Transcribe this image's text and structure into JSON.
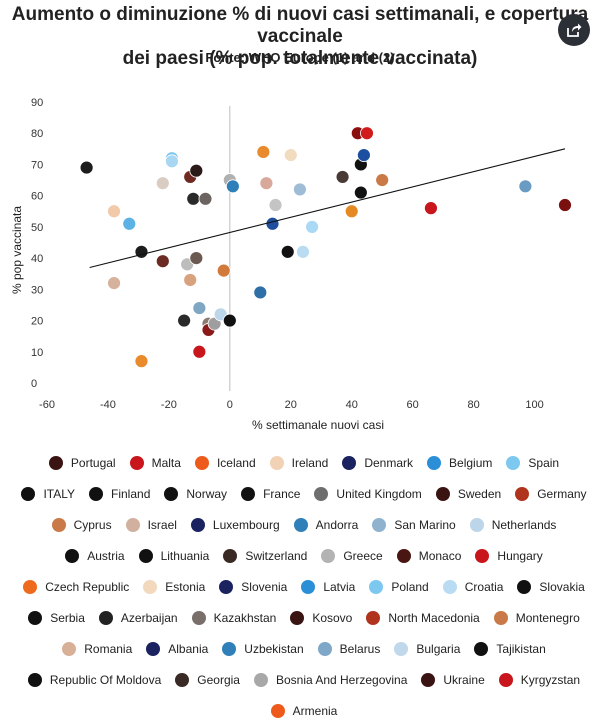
{
  "chart_data": {
    "type": "scatter",
    "title_lines": [
      "Aumento o diminuzione % di nuovi casi settimanali, e copertura vaccinale",
      "dei paesi (% pop. totalmente vaccinata)"
    ],
    "subtitle": "Fonte: WHO Europe (1) and (2)",
    "xlabel": "% settimanale nuovi casi",
    "ylabel": "% pop vaccinata",
    "xlim": [
      -60,
      110
    ],
    "ylim": [
      0,
      90
    ],
    "x_ticks": [
      -60,
      -40,
      -20,
      0,
      20,
      40,
      60,
      80,
      100
    ],
    "y_ticks": [
      0,
      10,
      20,
      30,
      40,
      50,
      60,
      70,
      80,
      90
    ],
    "vertical_reference_x": 0,
    "grid": false,
    "legend_position": "bottom",
    "trendline": {
      "x": [
        -46,
        110
      ],
      "y": [
        37,
        75
      ]
    },
    "points": [
      {
        "x": -47,
        "y": 69,
        "color": "#1c1c1c"
      },
      {
        "x": -38,
        "y": 55,
        "color": "#f2c9a9"
      },
      {
        "x": -38,
        "y": 32,
        "color": "#d6b29c"
      },
      {
        "x": -33,
        "y": 51,
        "color": "#5cb2e4"
      },
      {
        "x": -29,
        "y": 42,
        "color": "#1c1c1c"
      },
      {
        "x": -29,
        "y": 7,
        "color": "#e98a2c"
      },
      {
        "x": -22,
        "y": 39,
        "color": "#6b2a22"
      },
      {
        "x": -22,
        "y": 64,
        "color": "#d9ccc2"
      },
      {
        "x": -19,
        "y": 72,
        "color": "#7cc8ee"
      },
      {
        "x": -19,
        "y": 71,
        "color": "#a9d7f1"
      },
      {
        "x": -15,
        "y": 20,
        "color": "#2a2a2a"
      },
      {
        "x": -14,
        "y": 38,
        "color": "#bdbdbd"
      },
      {
        "x": -13,
        "y": 33,
        "color": "#d8a27f"
      },
      {
        "x": -13,
        "y": 66,
        "color": "#6e2a22"
      },
      {
        "x": -12,
        "y": 59,
        "color": "#2a2a2a"
      },
      {
        "x": -11,
        "y": 40,
        "color": "#6b5a52"
      },
      {
        "x": -11,
        "y": 68,
        "color": "#2a1a18"
      },
      {
        "x": -10,
        "y": 24,
        "color": "#7fa7c3"
      },
      {
        "x": -10,
        "y": 10,
        "color": "#c8161c"
      },
      {
        "x": -8,
        "y": 59,
        "color": "#6c6460"
      },
      {
        "x": -7,
        "y": 19,
        "color": "#8a7a72"
      },
      {
        "x": -7,
        "y": 17,
        "color": "#8a1a1a"
      },
      {
        "x": -5,
        "y": 19,
        "color": "#9e9e9e"
      },
      {
        "x": -3,
        "y": 22,
        "color": "#bcd6ea"
      },
      {
        "x": -2,
        "y": 36,
        "color": "#d27a3c"
      },
      {
        "x": 0,
        "y": 20,
        "color": "#111111"
      },
      {
        "x": 0,
        "y": 65,
        "color": "#b0b0b0"
      },
      {
        "x": 1,
        "y": 63,
        "color": "#2f7fb8"
      },
      {
        "x": 10,
        "y": 29,
        "color": "#2f6fa8"
      },
      {
        "x": 11,
        "y": 74,
        "color": "#e98a2c"
      },
      {
        "x": 12,
        "y": 64,
        "color": "#d8a89a"
      },
      {
        "x": 14,
        "y": 51,
        "color": "#1f4e9c"
      },
      {
        "x": 15,
        "y": 57,
        "color": "#c4c4c4"
      },
      {
        "x": 19,
        "y": 42,
        "color": "#111111"
      },
      {
        "x": 20,
        "y": 73,
        "color": "#f2dcc0"
      },
      {
        "x": 23,
        "y": 62,
        "color": "#9fbcd6"
      },
      {
        "x": 24,
        "y": 42,
        "color": "#b9dcf3"
      },
      {
        "x": 27,
        "y": 50,
        "color": "#a9d9f5"
      },
      {
        "x": 37,
        "y": 66,
        "color": "#4a3a36"
      },
      {
        "x": 40,
        "y": 55,
        "color": "#e58a22"
      },
      {
        "x": 42,
        "y": 80,
        "color": "#8a1010"
      },
      {
        "x": 43,
        "y": 61,
        "color": "#111111"
      },
      {
        "x": 43,
        "y": 70,
        "color": "#111111"
      },
      {
        "x": 44,
        "y": 73,
        "color": "#1c4fa0"
      },
      {
        "x": 45,
        "y": 80,
        "color": "#d21b1b"
      },
      {
        "x": 50,
        "y": 65,
        "color": "#c97a48"
      },
      {
        "x": 66,
        "y": 56,
        "color": "#c8161c"
      },
      {
        "x": 97,
        "y": 63,
        "color": "#6a9bc3"
      },
      {
        "x": 110,
        "y": 57,
        "color": "#7a1010"
      }
    ],
    "legend": [
      {
        "name": "Portugal",
        "color": "#3a1412"
      },
      {
        "name": "Malta",
        "color": "#c8161c"
      },
      {
        "name": "Iceland",
        "color": "#ee5a1c"
      },
      {
        "name": "Ireland",
        "color": "#f2d2b4"
      },
      {
        "name": "Denmark",
        "color": "#1a2360"
      },
      {
        "name": "Belgium",
        "color": "#2a8fd6"
      },
      {
        "name": "Spain",
        "color": "#7cc8ee"
      },
      {
        "name": "ITALY",
        "color": "#111111"
      },
      {
        "name": "Finland",
        "color": "#111111"
      },
      {
        "name": "Norway",
        "color": "#111111"
      },
      {
        "name": "France",
        "color": "#111111"
      },
      {
        "name": "United Kingdom",
        "color": "#6e6e6e"
      },
      {
        "name": "Sweden",
        "color": "#3a1412"
      },
      {
        "name": "Germany",
        "color": "#b0331e"
      },
      {
        "name": "Cyprus",
        "color": "#c97a48"
      },
      {
        "name": "Israel",
        "color": "#d2b0a0"
      },
      {
        "name": "Luxembourg",
        "color": "#1a2360"
      },
      {
        "name": "Andorra",
        "color": "#2f7fb8"
      },
      {
        "name": "San Marino",
        "color": "#8fb3cf"
      },
      {
        "name": "Netherlands",
        "color": "#bdd5e8"
      },
      {
        "name": "Austria",
        "color": "#111111"
      },
      {
        "name": "Lithuania",
        "color": "#111111"
      },
      {
        "name": "Switzerland",
        "color": "#3a2a26"
      },
      {
        "name": "Greece",
        "color": "#b3b3b3"
      },
      {
        "name": "Monaco",
        "color": "#4a1612"
      },
      {
        "name": "Hungary",
        "color": "#c8161c"
      },
      {
        "name": "Czech Republic",
        "color": "#ee6a1c"
      },
      {
        "name": "Estonia",
        "color": "#f2d8bc"
      },
      {
        "name": "Slovenia",
        "color": "#1a2360"
      },
      {
        "name": "Latvia",
        "color": "#2a8fd6"
      },
      {
        "name": "Poland",
        "color": "#7cc8ee"
      },
      {
        "name": "Croatia",
        "color": "#b9dcf3"
      },
      {
        "name": "Slovakia",
        "color": "#111111"
      },
      {
        "name": "Serbia",
        "color": "#111111"
      },
      {
        "name": "Azerbaijan",
        "color": "#222222"
      },
      {
        "name": "Kazakhstan",
        "color": "#7a6e6a"
      },
      {
        "name": "Kosovo",
        "color": "#3a1412"
      },
      {
        "name": "North Macedonia",
        "color": "#b0331e"
      },
      {
        "name": "Montenegro",
        "color": "#c97a48"
      },
      {
        "name": "Romania",
        "color": "#d8b098"
      },
      {
        "name": "Albania",
        "color": "#1a2360"
      },
      {
        "name": "Uzbekistan",
        "color": "#2f7fb8"
      },
      {
        "name": "Belarus",
        "color": "#7fa7c8"
      },
      {
        "name": "Bulgaria",
        "color": "#c0d8ea"
      },
      {
        "name": "Tajikistan",
        "color": "#111111"
      },
      {
        "name": "Republic Of Moldova",
        "color": "#111111"
      },
      {
        "name": "Georgia",
        "color": "#3a2a26"
      },
      {
        "name": "Bosnia And Herzegovina",
        "color": "#a8a8a8"
      },
      {
        "name": "Ukraine",
        "color": "#3a1412"
      },
      {
        "name": "Kyrgyzstan",
        "color": "#c8161c"
      },
      {
        "name": "Armenia",
        "color": "#ee5a1c"
      }
    ]
  },
  "toolbar": {
    "share_icon": "share-icon"
  }
}
